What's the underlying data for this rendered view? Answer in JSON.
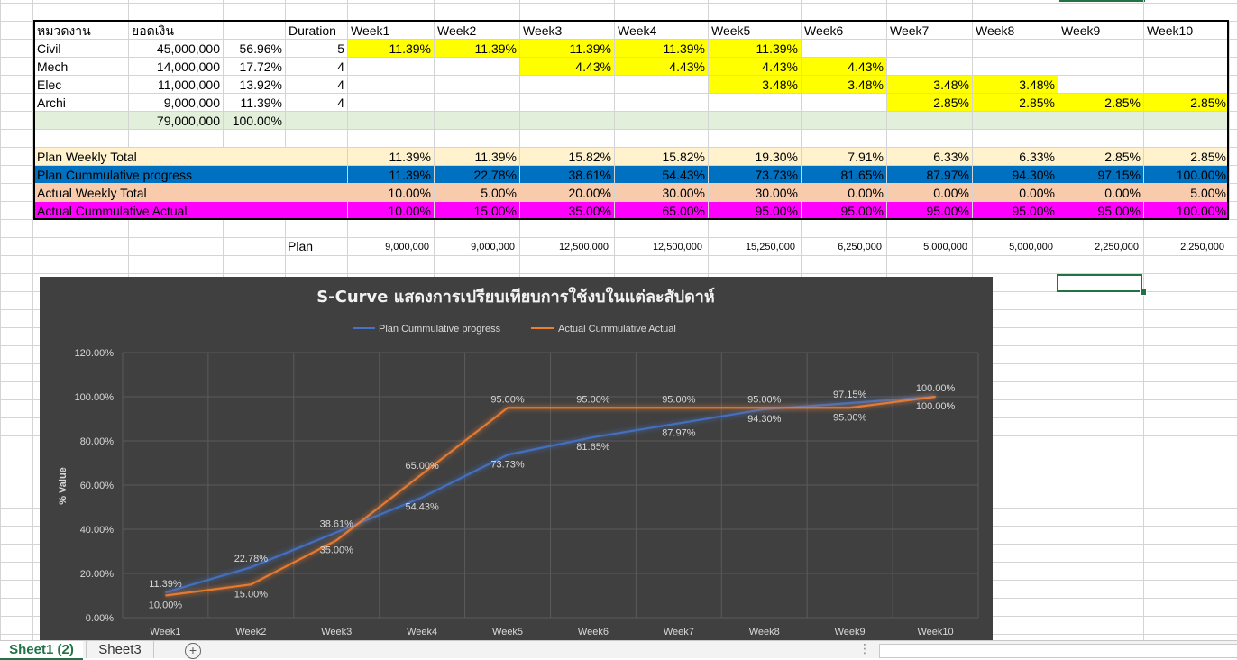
{
  "headers": [
    "หมวดงาน",
    "ยอดเงิน",
    "",
    "Duration",
    "Week1",
    "Week2",
    "Week3",
    "Week4",
    "Week5",
    "Week6",
    "Week7",
    "Week8",
    "Week9",
    "Week10"
  ],
  "rows": [
    {
      "name": "Civil",
      "amount": "45,000,000",
      "pct": "56.96%",
      "duration": "5",
      "weeks": [
        "11.39%",
        "11.39%",
        "11.39%",
        "11.39%",
        "11.39%",
        "",
        "",
        "",
        "",
        ""
      ]
    },
    {
      "name": "Mech",
      "amount": "14,000,000",
      "pct": "17.72%",
      "duration": "4",
      "weeks": [
        "",
        "",
        "4.43%",
        "4.43%",
        "4.43%",
        "4.43%",
        "",
        "",
        "",
        ""
      ]
    },
    {
      "name": "Elec",
      "amount": "11,000,000",
      "pct": "13.92%",
      "duration": "4",
      "weeks": [
        "",
        "",
        "",
        "",
        "3.48%",
        "3.48%",
        "3.48%",
        "3.48%",
        "",
        ""
      ]
    },
    {
      "name": "Archi",
      "amount": "9,000,000",
      "pct": "11.39%",
      "duration": "4",
      "weeks": [
        "",
        "",
        "",
        "",
        "",
        "",
        "2.85%",
        "2.85%",
        "2.85%",
        "2.85%"
      ]
    }
  ],
  "total": {
    "amount": "79,000,000",
    "pct": "100.00%"
  },
  "summary": [
    {
      "label": "Plan Weekly Total",
      "values": [
        "11.39%",
        "11.39%",
        "15.82%",
        "15.82%",
        "19.30%",
        "7.91%",
        "6.33%",
        "6.33%",
        "2.85%",
        "2.85%"
      ]
    },
    {
      "label": "Plan Cummulative progress",
      "values": [
        "11.39%",
        "22.78%",
        "38.61%",
        "54.43%",
        "73.73%",
        "81.65%",
        "87.97%",
        "94.30%",
        "97.15%",
        "100.00%"
      ]
    },
    {
      "label": "Actual Weekly Total",
      "values": [
        "10.00%",
        "5.00%",
        "20.00%",
        "30.00%",
        "30.00%",
        "0.00%",
        "0.00%",
        "0.00%",
        "0.00%",
        "5.00%"
      ]
    },
    {
      "label": "Actual Cummulative Actual",
      "values": [
        "10.00%",
        "15.00%",
        "35.00%",
        "65.00%",
        "95.00%",
        "95.00%",
        "95.00%",
        "95.00%",
        "95.00%",
        "100.00%"
      ]
    }
  ],
  "plan_row": {
    "label": "Plan",
    "values": [
      "9,000,000",
      "9,000,000",
      "12,500,000",
      "12,500,000",
      "15,250,000",
      "6,250,000",
      "5,000,000",
      "5,000,000",
      "2,250,000",
      "2,250,000"
    ]
  },
  "tabs": {
    "active": "Sheet1 (2)",
    "other": "Sheet3",
    "add": "+"
  },
  "colors": {
    "yellow": "#ffff00",
    "plan_line": "#4472c4",
    "actual_line": "#ed7d31",
    "chart_bg": "#404040"
  },
  "chart_data": {
    "type": "line",
    "title": "S-Curve แสดงการเปรียบเทียบการใช้งบในแต่ละสัปดาห์",
    "ylabel": "% Value",
    "xlabel": "",
    "categories": [
      "Week1",
      "Week2",
      "Week3",
      "Week4",
      "Week5",
      "Week6",
      "Week7",
      "Week8",
      "Week9",
      "Week10"
    ],
    "series": [
      {
        "name": "Plan Cummulative progress",
        "values": [
          11.39,
          22.78,
          38.61,
          54.43,
          73.73,
          81.65,
          87.97,
          94.3,
          97.15,
          100.0
        ],
        "labels": [
          "11.39%",
          "22.78%",
          "38.61%",
          "54.43%",
          "73.73%",
          "81.65%",
          "87.97%",
          "94.30%",
          "97.15%",
          "100.00%"
        ]
      },
      {
        "name": "Actual Cummulative Actual",
        "values": [
          10,
          15,
          35,
          65,
          95,
          95,
          95,
          95,
          95,
          100
        ],
        "labels": [
          "10.00%",
          "15.00%",
          "35.00%",
          "65.00%",
          "95.00%",
          "95.00%",
          "95.00%",
          "95.00%",
          "95.00%",
          "100.00%"
        ]
      }
    ],
    "yticks": [
      "0.00%",
      "20.00%",
      "40.00%",
      "60.00%",
      "80.00%",
      "100.00%",
      "120.00%"
    ],
    "ylim": [
      0,
      120
    ],
    "legend": "top",
    "grid": true
  }
}
